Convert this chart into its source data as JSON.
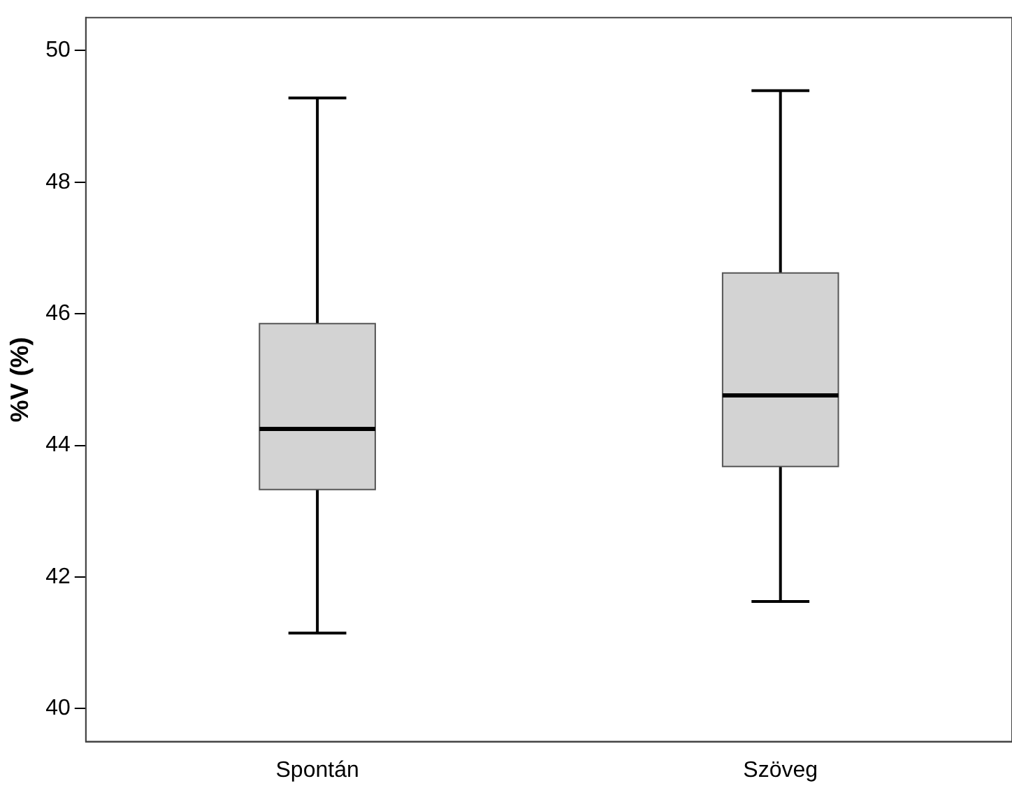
{
  "chart_data": {
    "type": "box",
    "ylabel": "%V (%)",
    "categories": [
      "Spontán",
      "Szöveg"
    ],
    "boxes": [
      {
        "low": 41.15,
        "q1": 43.33,
        "median": 44.25,
        "q3": 45.85,
        "high": 49.28
      },
      {
        "low": 41.63,
        "q1": 43.68,
        "median": 44.76,
        "q3": 46.62,
        "high": 49.39
      }
    ],
    "color": "#d3d3d3",
    "ylim": [
      39.5,
      50.5
    ],
    "yticks": [
      40,
      42,
      44,
      46,
      48,
      50
    ],
    "grid": false,
    "legend": false
  }
}
